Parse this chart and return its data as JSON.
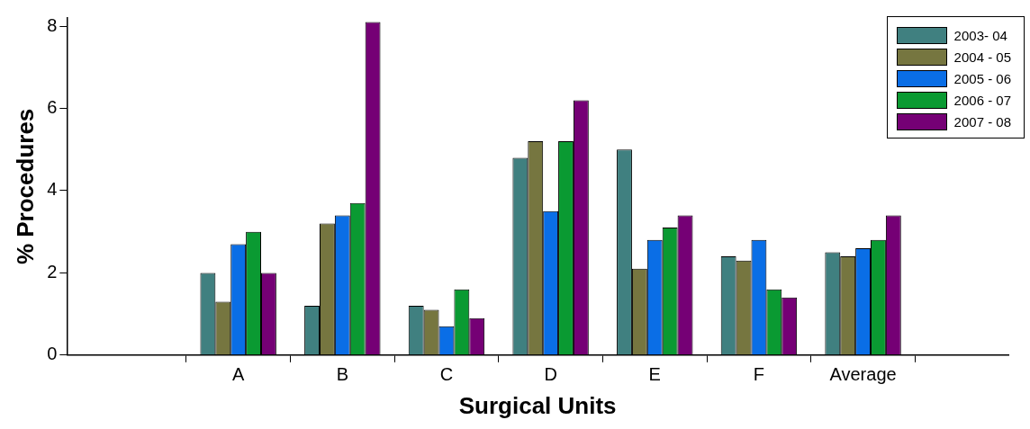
{
  "chart_data": {
    "type": "bar",
    "xlabel": "Surgical Units",
    "ylabel": "% Procedures",
    "categories": [
      "A",
      "B",
      "C",
      "D",
      "E",
      "F",
      "Average"
    ],
    "series": [
      {
        "name": "2003- 04",
        "color": "#408080",
        "values": [
          2.0,
          1.2,
          1.2,
          4.8,
          5.0,
          2.4,
          2.5
        ]
      },
      {
        "name": "2004 - 05",
        "color": "#767640",
        "values": [
          1.3,
          3.2,
          1.1,
          5.2,
          2.1,
          2.3,
          2.4
        ]
      },
      {
        "name": "2005 - 06",
        "color": "#0a6ee6",
        "values": [
          2.7,
          3.4,
          0.7,
          3.5,
          2.8,
          2.8,
          2.6
        ]
      },
      {
        "name": "2006 - 07",
        "color": "#0a9a32",
        "values": [
          3.0,
          3.7,
          1.6,
          5.2,
          3.1,
          1.6,
          2.8
        ]
      },
      {
        "name": "2007 - 08",
        "color": "#750075",
        "values": [
          2.0,
          8.1,
          0.9,
          6.2,
          3.4,
          1.4,
          3.4
        ]
      }
    ],
    "ylim": [
      0,
      8.2
    ],
    "yticks": [
      0,
      2,
      4,
      6,
      8
    ],
    "grid": false,
    "legend": "top right"
  }
}
